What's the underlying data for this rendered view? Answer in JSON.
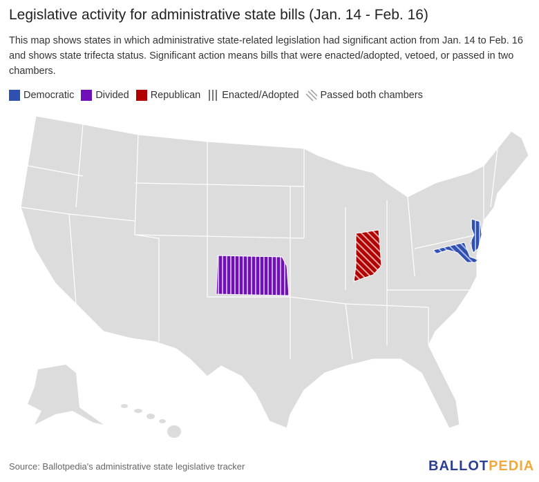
{
  "title": "Legislative activity for administrative state bills (Jan. 14 - Feb. 16)",
  "subtitle": "This map shows states in which administrative state-related legislation had significant action from Jan. 14 to Feb. 16 and shows state trifecta status. Significant action means bills that were enacted/adopted, vetoed, or passed in two chambers.",
  "legend": [
    {
      "label": "Democratic",
      "color": "#3050b0"
    },
    {
      "label": "Divided",
      "color": "#7010b8"
    },
    {
      "label": "Republican",
      "color": "#b00000"
    },
    {
      "label": "Enacted/Adopted",
      "icon": "vertical-stripes"
    },
    {
      "label": "Passed both chambers",
      "icon": "diagonal-stripes"
    }
  ],
  "highlighted_states": [
    {
      "state": "Kansas",
      "trifecta": "Divided",
      "action": "Enacted/Adopted"
    },
    {
      "state": "Indiana",
      "trifecta": "Republican",
      "action": "Passed both chambers"
    },
    {
      "state": "New Jersey",
      "trifecta": "Democratic",
      "action": "Enacted/Adopted"
    },
    {
      "state": "Maryland",
      "trifecta": "Democratic",
      "action": "Passed both chambers"
    }
  ],
  "source": "Source: Ballotpedia's administrative state legislative tracker",
  "logo": {
    "part1": "BALLOT",
    "part2": "PEDIA",
    "color1": "#2a3f8f",
    "color2": "#f2a93b"
  }
}
